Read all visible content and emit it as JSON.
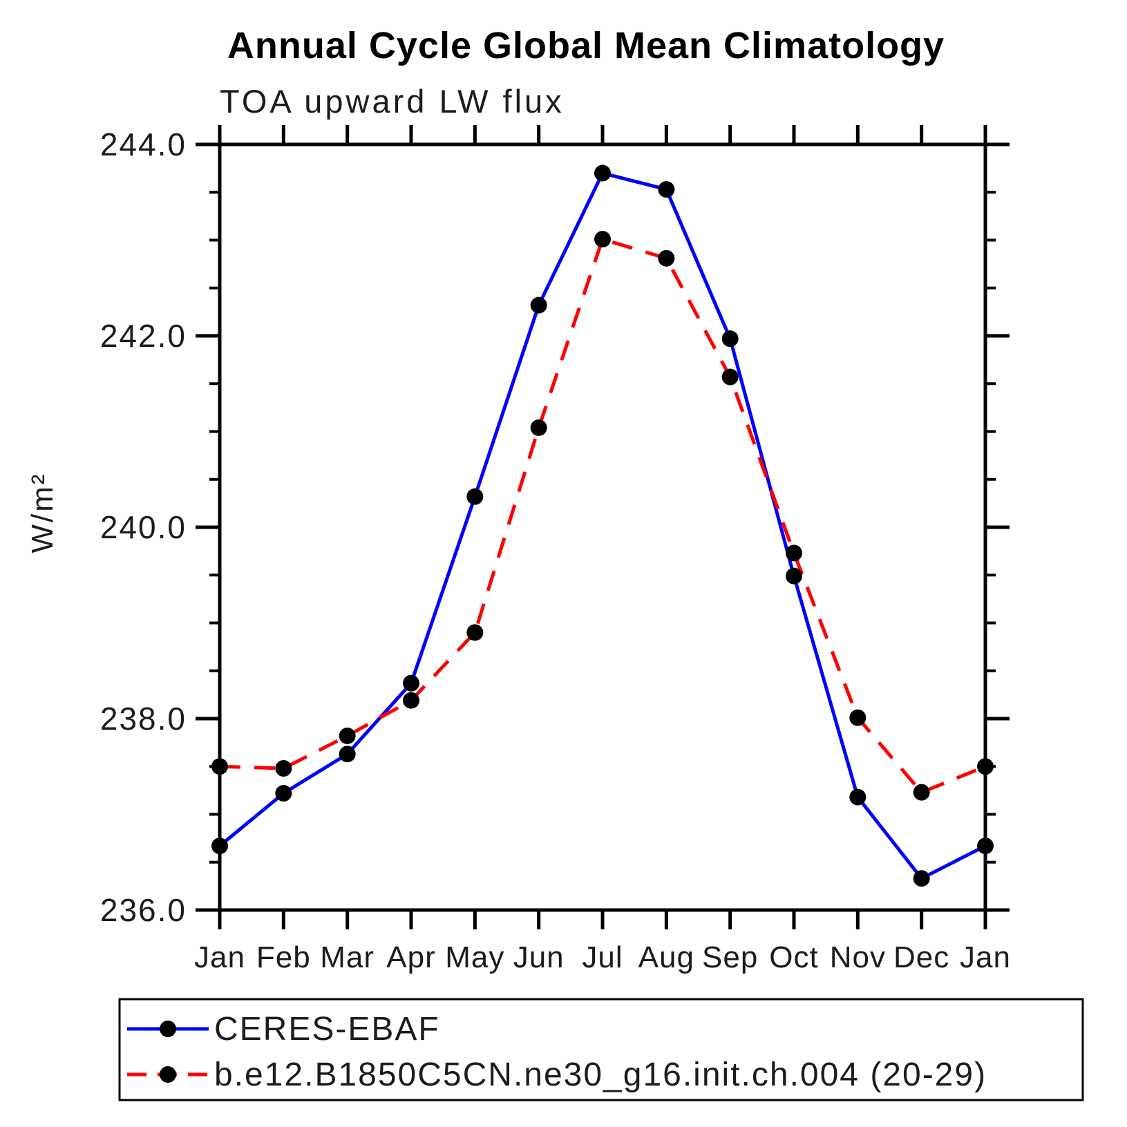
{
  "page": {
    "background": "#ffffff",
    "text_color": "#1c1c1c"
  },
  "chart_data": {
    "type": "line",
    "title": "Annual Cycle Global Mean Climatology",
    "subtitle": "TOA upward LW flux",
    "ylabel": "W/m²",
    "xlabel": "",
    "x_tick_labels": [
      "Jan",
      "Feb",
      "Mar",
      "Apr",
      "May",
      "Jun",
      "Jul",
      "Aug",
      "Sep",
      "Oct",
      "Nov",
      "Dec",
      "Jan"
    ],
    "y_tick_labels": [
      "244.0",
      "242.0",
      "240.0",
      "238.0",
      "236.0"
    ],
    "ylim": [
      236.0,
      244.0
    ],
    "y_major_step": 2.0,
    "y_minor_step": 0.5,
    "grid": "off",
    "tick_direction": "outward",
    "legend_position": "bottom",
    "marker_color": "#000000",
    "series": [
      {
        "name": "CERES-EBAF",
        "color": "#0000ff",
        "style": "solid",
        "marker": "circle",
        "values": [
          236.67,
          237.22,
          237.63,
          238.37,
          240.32,
          242.32,
          243.7,
          243.53,
          241.97,
          239.49,
          237.18,
          236.33,
          236.67
        ]
      },
      {
        "name": "b.e12.B1850C5CN.ne30_g16.init.ch.004 (20-29)",
        "color": "#ff0000",
        "style": "dashed",
        "marker": "circle",
        "values": [
          237.5,
          237.48,
          237.82,
          238.19,
          238.9,
          241.04,
          243.01,
          242.81,
          241.57,
          239.73,
          238.01,
          237.23,
          237.5
        ]
      }
    ]
  }
}
